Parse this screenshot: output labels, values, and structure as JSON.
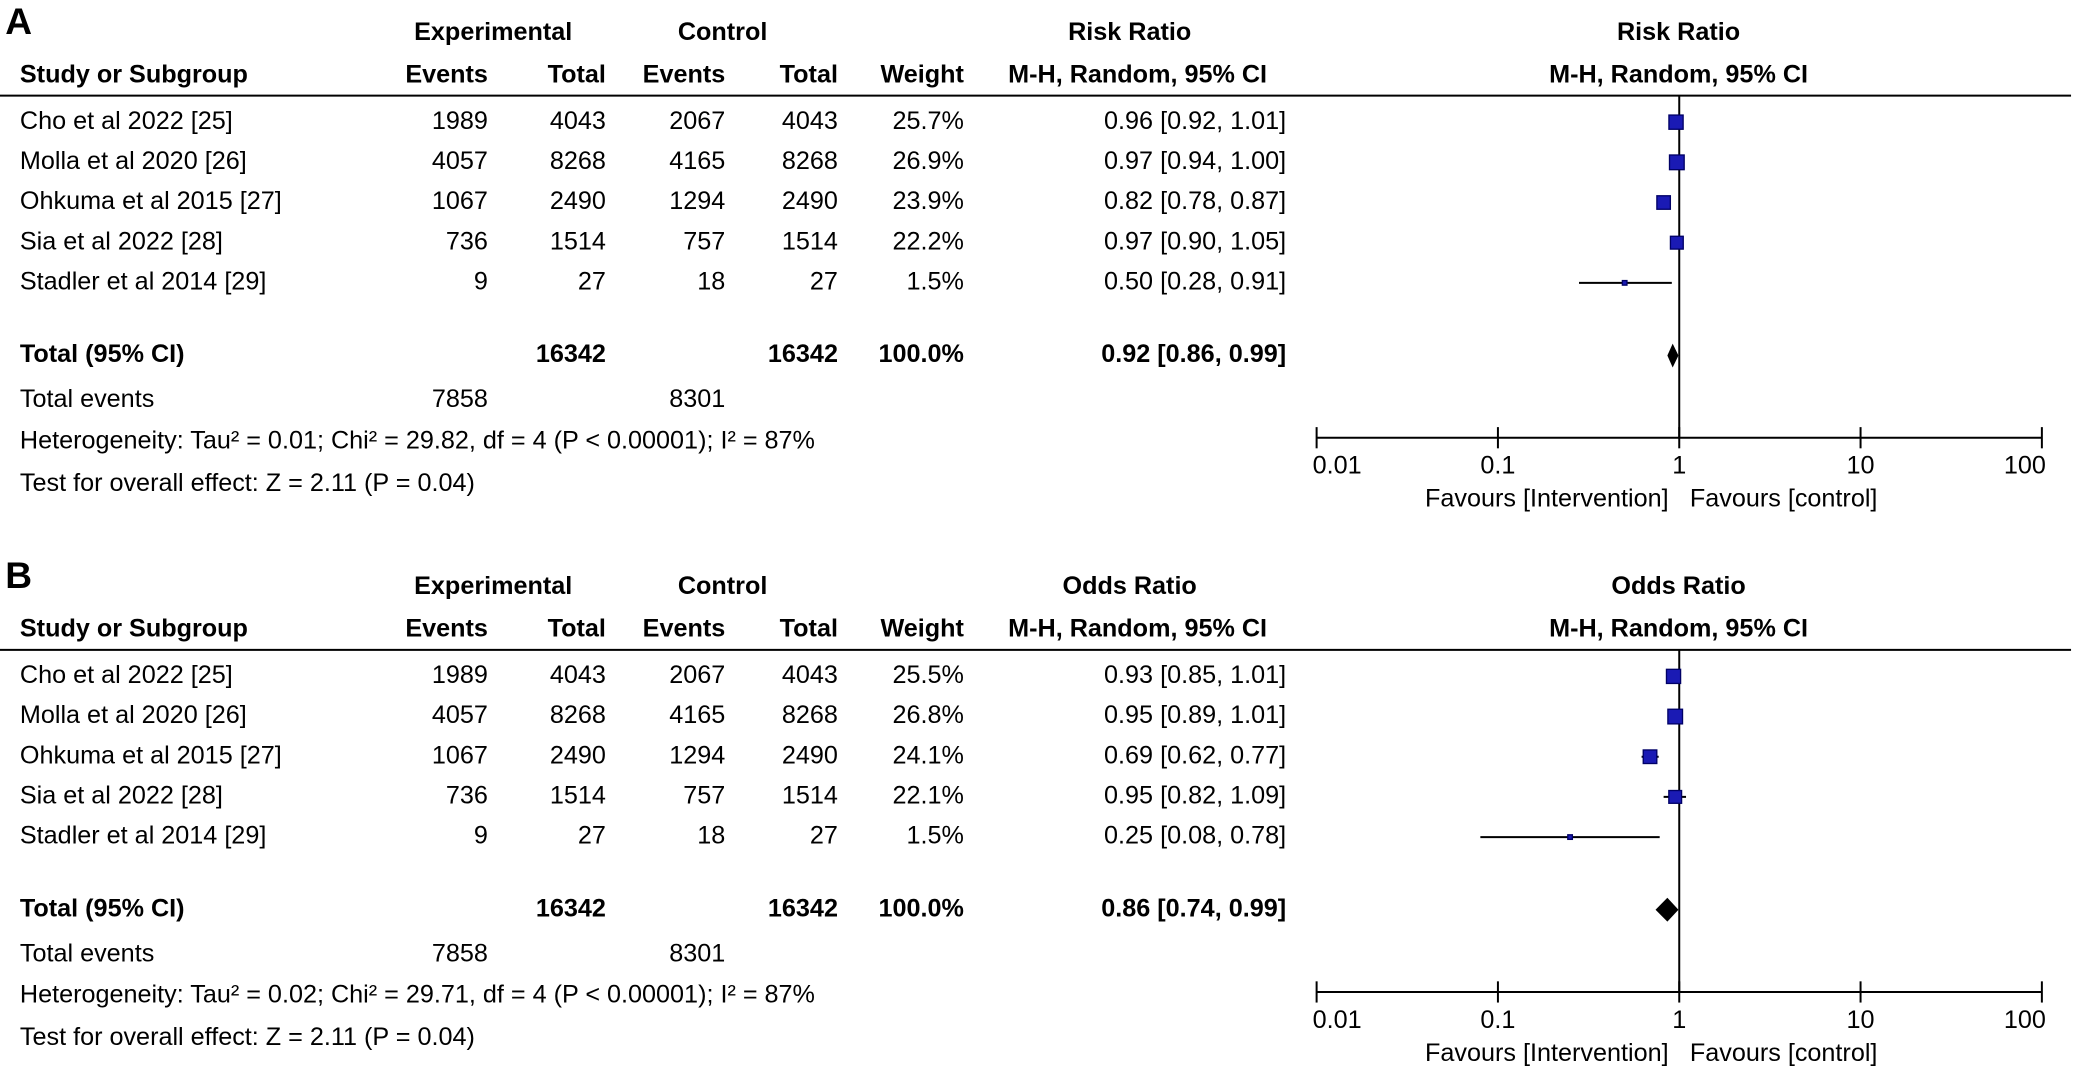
{
  "chart_data": [
    {
      "type": "forest",
      "panel": "A",
      "measure": "Risk Ratio",
      "method": "M-H, Random, 95% CI",
      "group_headers": [
        "Experimental",
        "Control"
      ],
      "column_headers": [
        "Study or Subgroup",
        "Events",
        "Total",
        "Events",
        "Total",
        "Weight"
      ],
      "studies": [
        {
          "name": "Cho et al 2022 [25]",
          "exp_events": 1989,
          "exp_total": 4043,
          "ctrl_events": 2067,
          "ctrl_total": 4043,
          "weight": 25.7,
          "weight_label": "25.7%",
          "value": 0.96,
          "lower": 0.92,
          "upper": 1.01,
          "value_label": "0.96 [0.92, 1.01]"
        },
        {
          "name": "Molla et al 2020 [26]",
          "exp_events": 4057,
          "exp_total": 8268,
          "ctrl_events": 4165,
          "ctrl_total": 8268,
          "weight": 26.9,
          "weight_label": "26.9%",
          "value": 0.97,
          "lower": 0.94,
          "upper": 1.0,
          "value_label": "0.97 [0.94, 1.00]"
        },
        {
          "name": "Ohkuma et al 2015 [27]",
          "exp_events": 1067,
          "exp_total": 2490,
          "ctrl_events": 1294,
          "ctrl_total": 2490,
          "weight": 23.9,
          "weight_label": "23.9%",
          "value": 0.82,
          "lower": 0.78,
          "upper": 0.87,
          "value_label": "0.82 [0.78, 0.87]"
        },
        {
          "name": "Sia et al 2022 [28]",
          "exp_events": 736,
          "exp_total": 1514,
          "ctrl_events": 757,
          "ctrl_total": 1514,
          "weight": 22.2,
          "weight_label": "22.2%",
          "value": 0.97,
          "lower": 0.9,
          "upper": 1.05,
          "value_label": "0.97 [0.90, 1.05]"
        },
        {
          "name": "Stadler et al 2014 [29]",
          "exp_events": 9,
          "exp_total": 27,
          "ctrl_events": 18,
          "ctrl_total": 27,
          "weight": 1.5,
          "weight_label": "1.5%",
          "value": 0.5,
          "lower": 0.28,
          "upper": 0.91,
          "value_label": "0.50 [0.28, 0.91]"
        }
      ],
      "total": {
        "name": "Total (95% CI)",
        "exp_total": 16342,
        "ctrl_total": 16342,
        "weight": 100.0,
        "weight_label": "100.0%",
        "value": 0.92,
        "lower": 0.86,
        "upper": 0.99,
        "value_label": "0.92 [0.86, 0.99]"
      },
      "total_events": {
        "name": "Total events",
        "exp_events": 7858,
        "ctrl_events": 8301
      },
      "heterogeneity": "Heterogeneity: Tau² = 0.01; Chi² = 29.82, df = 4 (P < 0.00001); I² = 87%",
      "overall_effect": "Test for overall effect: Z = 2.11 (P = 0.04)",
      "xlim": [
        0.01,
        100
      ],
      "xticks": [
        0.01,
        0.1,
        1,
        10,
        100
      ],
      "log_scale": true,
      "favours": [
        "Favours [Intervention]",
        "Favours [control]"
      ],
      "color": "#1a1ab4"
    },
    {
      "type": "forest",
      "panel": "B",
      "measure": "Odds Ratio",
      "method": "M-H, Random, 95% CI",
      "group_headers": [
        "Experimental",
        "Control"
      ],
      "column_headers": [
        "Study or Subgroup",
        "Events",
        "Total",
        "Events",
        "Total",
        "Weight"
      ],
      "studies": [
        {
          "name": "Cho et al 2022 [25]",
          "exp_events": 1989,
          "exp_total": 4043,
          "ctrl_events": 2067,
          "ctrl_total": 4043,
          "weight": 25.5,
          "weight_label": "25.5%",
          "value": 0.93,
          "lower": 0.85,
          "upper": 1.01,
          "value_label": "0.93 [0.85, 1.01]"
        },
        {
          "name": "Molla et al 2020 [26]",
          "exp_events": 4057,
          "exp_total": 8268,
          "ctrl_events": 4165,
          "ctrl_total": 8268,
          "weight": 26.8,
          "weight_label": "26.8%",
          "value": 0.95,
          "lower": 0.89,
          "upper": 1.01,
          "value_label": "0.95 [0.89, 1.01]"
        },
        {
          "name": "Ohkuma et al 2015 [27]",
          "exp_events": 1067,
          "exp_total": 2490,
          "ctrl_events": 1294,
          "ctrl_total": 2490,
          "weight": 24.1,
          "weight_label": "24.1%",
          "value": 0.69,
          "lower": 0.62,
          "upper": 0.77,
          "value_label": "0.69 [0.62, 0.77]"
        },
        {
          "name": "Sia et al 2022 [28]",
          "exp_events": 736,
          "exp_total": 1514,
          "ctrl_events": 757,
          "ctrl_total": 1514,
          "weight": 22.1,
          "weight_label": "22.1%",
          "value": 0.95,
          "lower": 0.82,
          "upper": 1.09,
          "value_label": "0.95 [0.82, 1.09]"
        },
        {
          "name": "Stadler et al 2014 [29]",
          "exp_events": 9,
          "exp_total": 27,
          "ctrl_events": 18,
          "ctrl_total": 27,
          "weight": 1.5,
          "weight_label": "1.5%",
          "value": 0.25,
          "lower": 0.08,
          "upper": 0.78,
          "value_label": "0.25 [0.08, 0.78]"
        }
      ],
      "total": {
        "name": "Total (95% CI)",
        "exp_total": 16342,
        "ctrl_total": 16342,
        "weight": 100.0,
        "weight_label": "100.0%",
        "value": 0.86,
        "lower": 0.74,
        "upper": 0.99,
        "value_label": "0.86 [0.74, 0.99]"
      },
      "total_events": {
        "name": "Total events",
        "exp_events": 7858,
        "ctrl_events": 8301
      },
      "heterogeneity": "Heterogeneity: Tau² = 0.02; Chi² = 29.71, df = 4 (P < 0.00001); I² = 87%",
      "overall_effect": "Test for overall effect: Z = 2.11 (P = 0.04)",
      "xlim": [
        0.01,
        100
      ],
      "xticks": [
        0.01,
        0.1,
        1,
        10,
        100
      ],
      "log_scale": true,
      "favours": [
        "Favours [Intervention]",
        "Favours [control]"
      ],
      "color": "#1a1ab4"
    }
  ]
}
